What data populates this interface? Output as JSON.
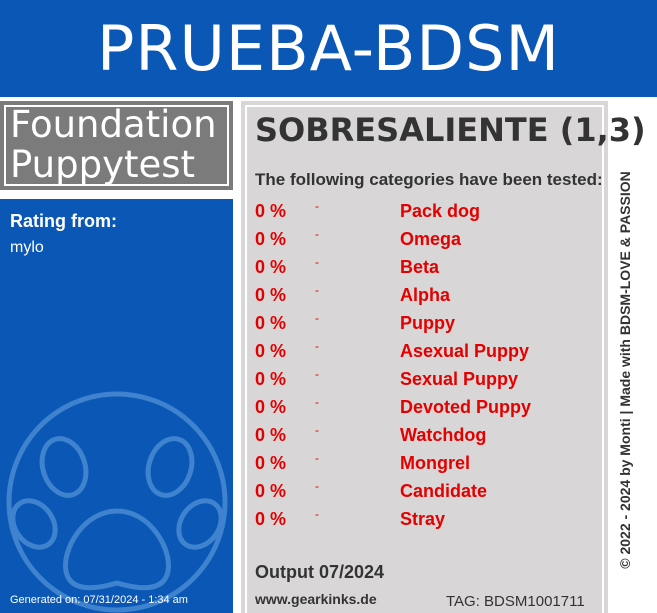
{
  "header": {
    "title": "PRUEBA-BDSM"
  },
  "test": {
    "title_line1": "Foundation",
    "title_line2": "Puppytest"
  },
  "rating": {
    "label": "Rating from:",
    "user": "mylo"
  },
  "generated": "Generated on: 07/31/2024 - 1:34 am",
  "result": {
    "score": "SOBRESALIENTE (1,3)",
    "tested_heading": "The following categories have been tested:",
    "categories": [
      {
        "pct": "0 %",
        "dash": "-",
        "name": "Pack dog"
      },
      {
        "pct": "0 %",
        "dash": "-",
        "name": "Omega"
      },
      {
        "pct": "0 %",
        "dash": "-",
        "name": "Beta"
      },
      {
        "pct": "0 %",
        "dash": "-",
        "name": "Alpha"
      },
      {
        "pct": "0 %",
        "dash": "-",
        "name": "Puppy"
      },
      {
        "pct": "0 %",
        "dash": "-",
        "name": "Asexual Puppy"
      },
      {
        "pct": "0 %",
        "dash": "-",
        "name": "Sexual Puppy"
      },
      {
        "pct": "0 %",
        "dash": "-",
        "name": "Devoted Puppy"
      },
      {
        "pct": "0 %",
        "dash": "-",
        "name": "Watchdog"
      },
      {
        "pct": "0 %",
        "dash": "-",
        "name": "Mongrel"
      },
      {
        "pct": "0 %",
        "dash": "-",
        "name": "Candidate"
      },
      {
        "pct": "0 %",
        "dash": "-",
        "name": "Stray"
      }
    ],
    "output": "Output 07/2024",
    "website": "www.gearkinks.de",
    "tag": "TAG: BDSM1001711"
  },
  "copyright": "© 2022 - 2024 by Monti | Made with BDSM-LOVE & PASSION",
  "icons": {
    "paw": "paw-print-icon"
  },
  "colors": {
    "brand_blue": "#0a57b5",
    "title_gray": "#7b7b7b",
    "panel_gray": "#d8d6d7",
    "category_red": "#e50000",
    "text_dark": "#333333"
  }
}
